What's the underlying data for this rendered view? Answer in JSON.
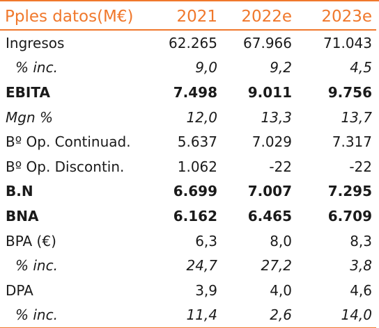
{
  "table": {
    "header": [
      "Pples datos(M€)",
      "2021",
      "2022e",
      "2023e"
    ],
    "rows": [
      {
        "label": "Ingresos",
        "values": [
          "62.265",
          "67.966",
          "71.043"
        ],
        "style": "normal"
      },
      {
        "label": "% inc.",
        "values": [
          "9,0",
          "9,2",
          "4,5"
        ],
        "style": "italic-indent"
      },
      {
        "label": "EBITA",
        "values": [
          "7.498",
          "9.011",
          "9.756"
        ],
        "style": "bold"
      },
      {
        "label": "Mgn %",
        "values": [
          "12,0",
          "13,3",
          "13,7"
        ],
        "style": "italic"
      },
      {
        "label": "Bº Op. Continuad.",
        "values": [
          "5.637",
          "7.029",
          "7.317"
        ],
        "style": "normal"
      },
      {
        "label": "Bº Op. Discontin.",
        "values": [
          "1.062",
          "-22",
          "-22"
        ],
        "style": "normal"
      },
      {
        "label": "B.N",
        "values": [
          "6.699",
          "7.007",
          "7.295"
        ],
        "style": "bold"
      },
      {
        "label": "BNA",
        "values": [
          "6.162",
          "6.465",
          "6.709"
        ],
        "style": "bold"
      },
      {
        "label": "BPA (€)",
        "values": [
          "6,3",
          "8,0",
          "8,3"
        ],
        "style": "normal"
      },
      {
        "label": "% inc.",
        "values": [
          "24,7",
          "27,2",
          "3,8"
        ],
        "style": "italic-indent"
      },
      {
        "label": "DPA",
        "values": [
          "3,9",
          "4,0",
          "4,6"
        ],
        "style": "normal"
      },
      {
        "label": "% inc.",
        "values": [
          "11,4",
          "2,6",
          "14,0"
        ],
        "style": "italic-indent"
      }
    ]
  },
  "colors": {
    "accent": "#f0782c",
    "text": "#1a1a1a"
  }
}
